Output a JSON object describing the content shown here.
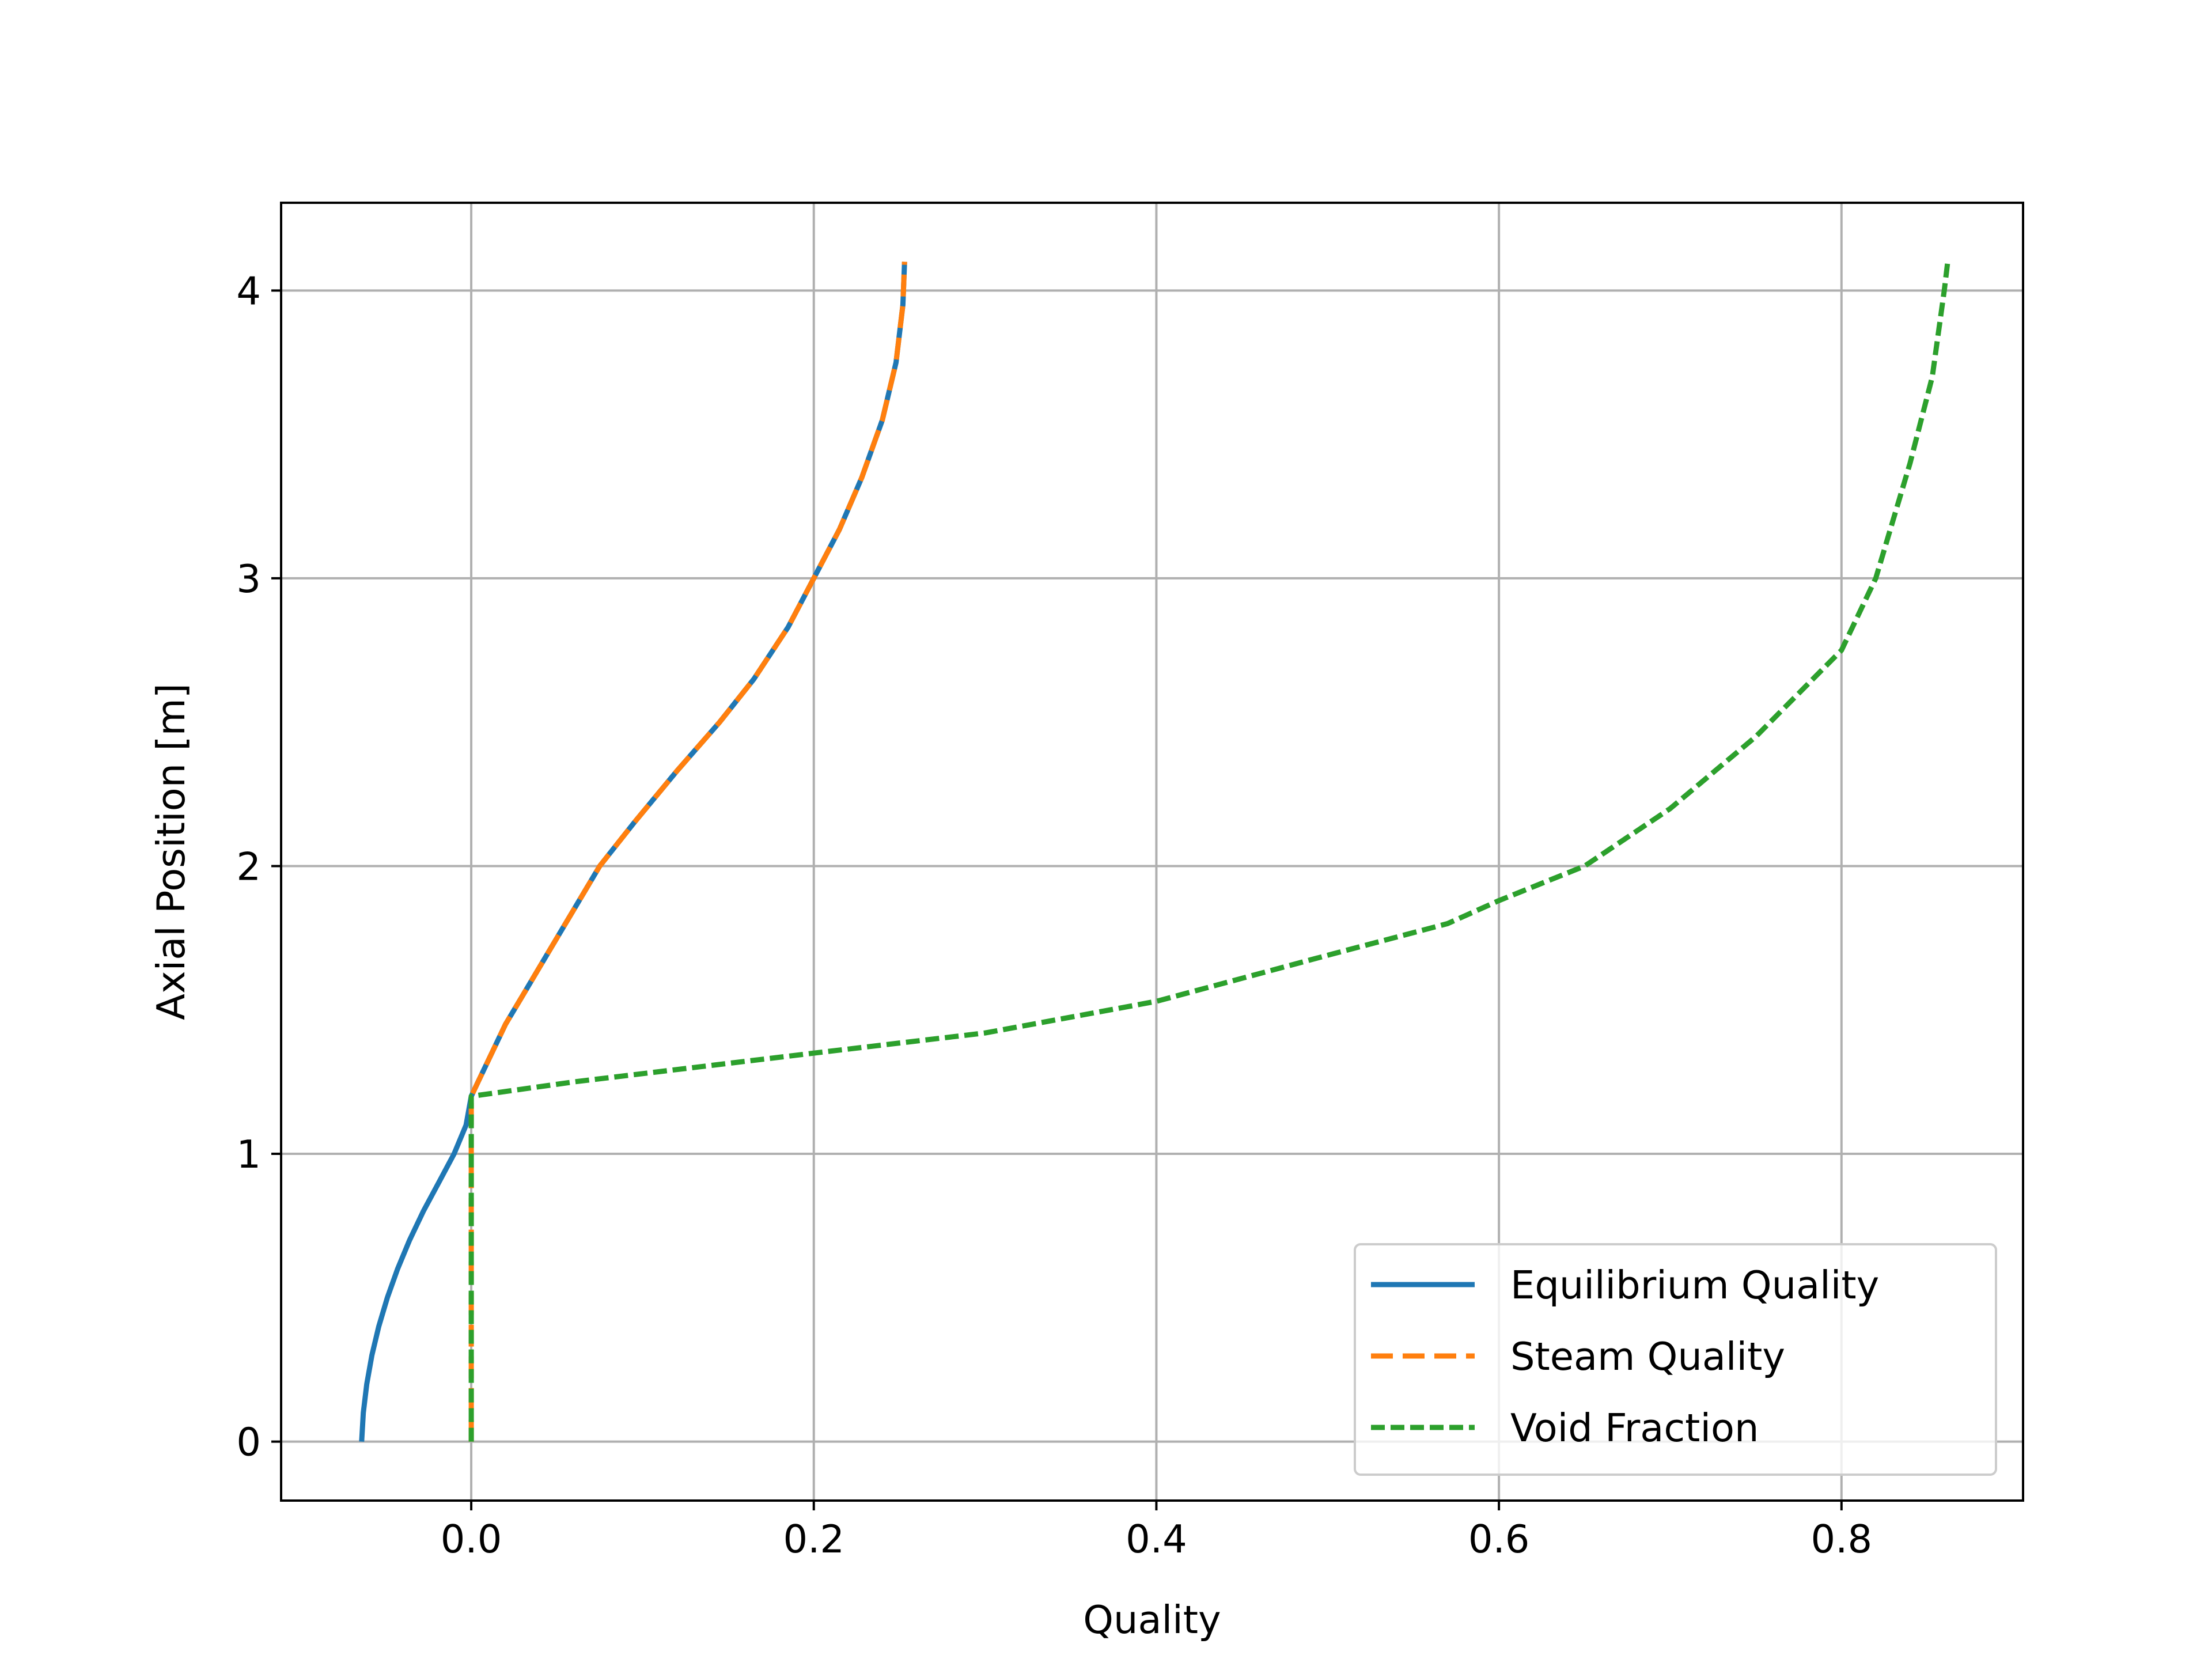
{
  "chart_data": {
    "type": "line",
    "title": "",
    "xlabel": "Quality",
    "ylabel": "Axial Position  [m]",
    "xlim": [
      -0.111,
      0.906
    ],
    "ylim": [
      -0.205,
      4.305
    ],
    "x_ticks": [
      0.0,
      0.2,
      0.4,
      0.6,
      0.8
    ],
    "x_tick_labels": [
      "0.0",
      "0.2",
      "0.4",
      "0.6",
      "0.8"
    ],
    "y_ticks": [
      0,
      1,
      2,
      3,
      4
    ],
    "y_tick_labels": [
      "0",
      "1",
      "2",
      "3",
      "4"
    ],
    "grid": true,
    "legend_position": "lower-right",
    "series": [
      {
        "name": "Equilibrium Quality",
        "color": "#1f77b4",
        "style": "solid",
        "points": [
          [
            -0.064,
            0.0
          ],
          [
            -0.063,
            0.1
          ],
          [
            -0.061,
            0.2
          ],
          [
            -0.058,
            0.3
          ],
          [
            -0.054,
            0.4
          ],
          [
            -0.049,
            0.5
          ],
          [
            -0.043,
            0.6
          ],
          [
            -0.036,
            0.7
          ],
          [
            -0.028,
            0.8
          ],
          [
            -0.019,
            0.9
          ],
          [
            -0.01,
            1.0
          ],
          [
            -0.003,
            1.1
          ],
          [
            0.0,
            1.2
          ],
          [
            0.004,
            1.25
          ],
          [
            0.012,
            1.35
          ],
          [
            0.02,
            1.45
          ],
          [
            0.03,
            1.55
          ],
          [
            0.04,
            1.65
          ],
          [
            0.05,
            1.75
          ],
          [
            0.06,
            1.85
          ],
          [
            0.075,
            2.0
          ],
          [
            0.095,
            2.15
          ],
          [
            0.12,
            2.33
          ],
          [
            0.145,
            2.5
          ],
          [
            0.165,
            2.65
          ],
          [
            0.185,
            2.83
          ],
          [
            0.2,
            3.0
          ],
          [
            0.215,
            3.17
          ],
          [
            0.228,
            3.35
          ],
          [
            0.24,
            3.55
          ],
          [
            0.248,
            3.75
          ],
          [
            0.252,
            3.95
          ],
          [
            0.253,
            4.1
          ]
        ]
      },
      {
        "name": "Steam Quality",
        "color": "#ff7f0e",
        "style": "dashed",
        "points": [
          [
            0.0,
            0.0
          ],
          [
            0.0,
            0.6
          ],
          [
            0.0,
            1.2
          ],
          [
            0.004,
            1.25
          ],
          [
            0.012,
            1.35
          ],
          [
            0.02,
            1.45
          ],
          [
            0.03,
            1.55
          ],
          [
            0.04,
            1.65
          ],
          [
            0.05,
            1.75
          ],
          [
            0.06,
            1.85
          ],
          [
            0.075,
            2.0
          ],
          [
            0.095,
            2.15
          ],
          [
            0.12,
            2.33
          ],
          [
            0.145,
            2.5
          ],
          [
            0.165,
            2.65
          ],
          [
            0.185,
            2.83
          ],
          [
            0.2,
            3.0
          ],
          [
            0.215,
            3.17
          ],
          [
            0.228,
            3.35
          ],
          [
            0.24,
            3.55
          ],
          [
            0.248,
            3.75
          ],
          [
            0.252,
            3.95
          ],
          [
            0.253,
            4.1
          ]
        ]
      },
      {
        "name": "Void Fraction",
        "color": "#2ca02c",
        "style": "dotted",
        "points": [
          [
            0.0,
            0.0
          ],
          [
            0.0,
            0.6
          ],
          [
            0.0,
            1.2
          ],
          [
            0.06,
            1.25
          ],
          [
            0.2,
            1.35
          ],
          [
            0.3,
            1.42
          ],
          [
            0.4,
            1.53
          ],
          [
            0.5,
            1.69
          ],
          [
            0.57,
            1.8
          ],
          [
            0.6,
            1.88
          ],
          [
            0.65,
            2.0
          ],
          [
            0.7,
            2.2
          ],
          [
            0.75,
            2.45
          ],
          [
            0.8,
            2.75
          ],
          [
            0.82,
            3.0
          ],
          [
            0.84,
            3.4
          ],
          [
            0.853,
            3.7
          ],
          [
            0.86,
            4.0
          ],
          [
            0.862,
            4.1
          ]
        ]
      }
    ]
  }
}
